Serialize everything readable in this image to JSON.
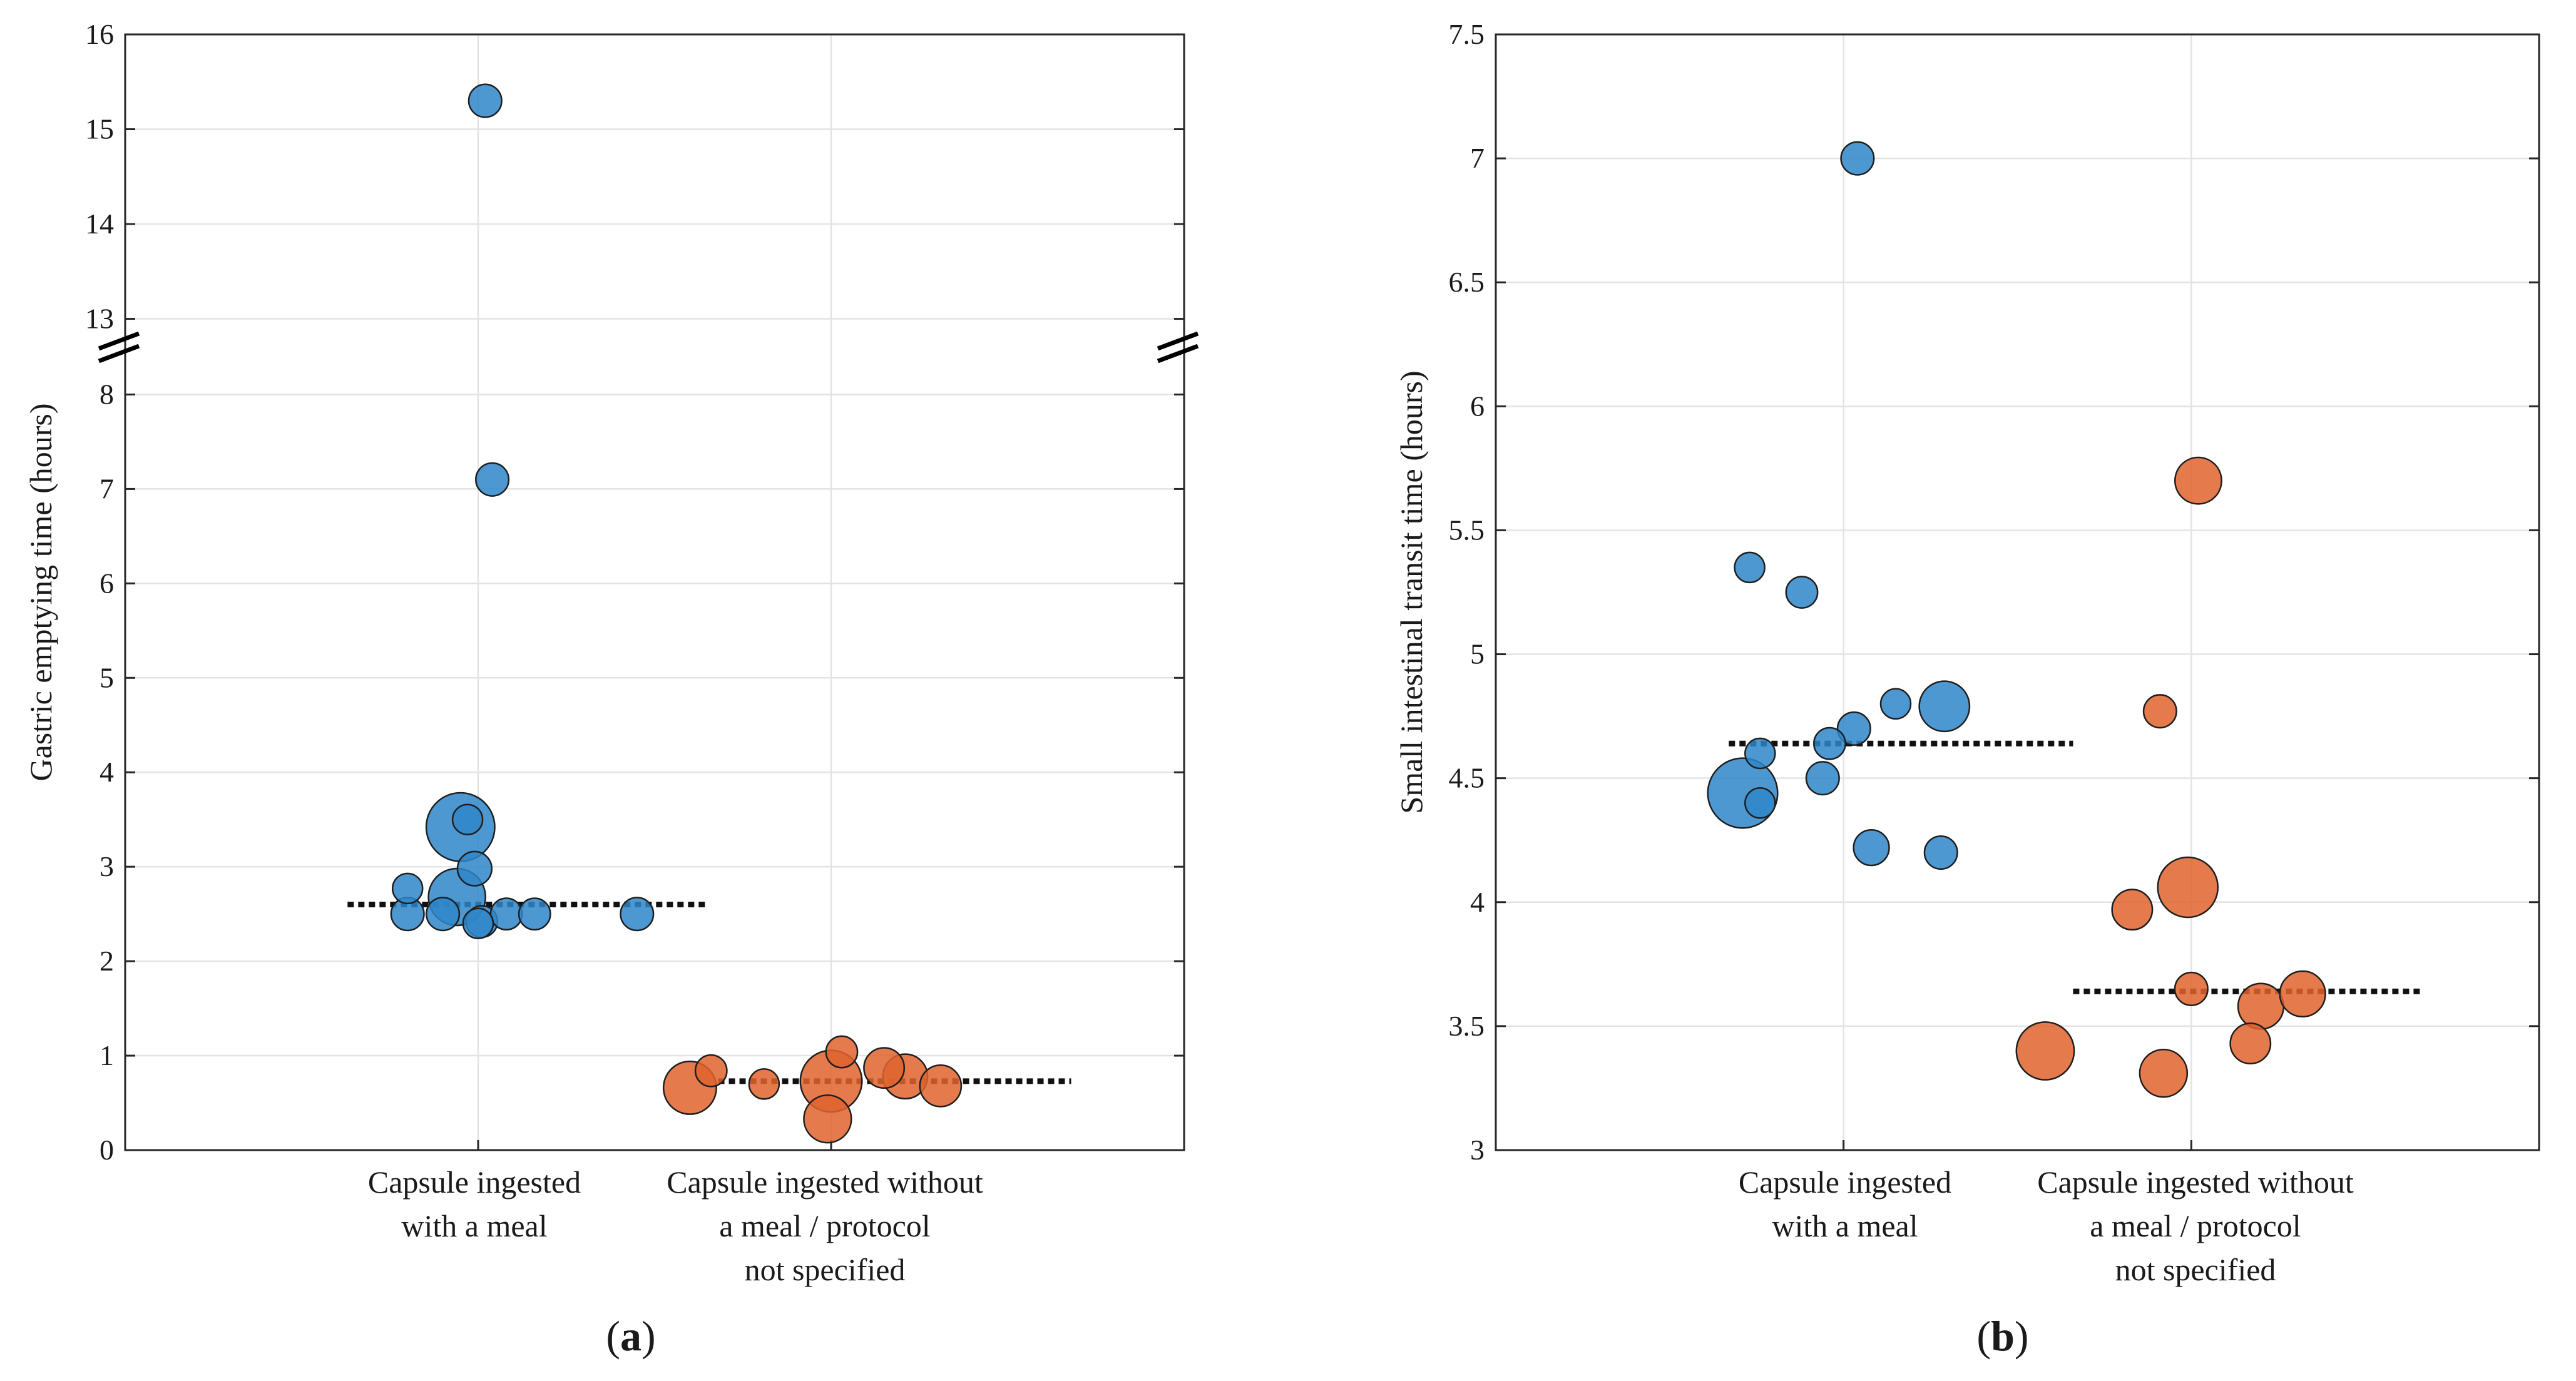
{
  "colors": {
    "with_meal": "#2f86c9",
    "without_meal": "#e0642e",
    "median": "#111111"
  },
  "chart_data": [
    {
      "type": "scatter",
      "panel_label_open": "(",
      "panel_label_letter": "a",
      "panel_label_close": ")",
      "title": "",
      "ylabel": "Gastric emptying time (hours)",
      "xlabel": "",
      "categories": [
        "Capsule ingested\nwith a meal",
        "Capsule ingested without\na meal / protocol\nnot specified"
      ],
      "y_axis_break": {
        "from": 8.5,
        "to": 12.7
      },
      "ylim": [
        0,
        16
      ],
      "yticks": [
        "0",
        "1",
        "2",
        "3",
        "4",
        "5",
        "6",
        "7",
        "8",
        "13",
        "14",
        "15",
        "16"
      ],
      "grid": true,
      "series": [
        {
          "name": "Capsule ingested with a meal",
          "color": "#2f86c9",
          "median": 2.6,
          "points": [
            {
              "x": 0.8,
              "y": 2.77,
              "size": 1
            },
            {
              "x": 0.8,
              "y": 2.5,
              "size": 1.2
            },
            {
              "x": 0.9,
              "y": 2.5,
              "size": 1.2
            },
            {
              "x": 0.95,
              "y": 3.42,
              "size": 5.2
            },
            {
              "x": 0.94,
              "y": 2.68,
              "size": 3.6
            },
            {
              "x": 0.97,
              "y": 3.5,
              "size": 1
            },
            {
              "x": 0.99,
              "y": 2.98,
              "size": 1.3
            },
            {
              "x": 1.0,
              "y": 2.4,
              "size": 1
            },
            {
              "x": 1.01,
              "y": 2.42,
              "size": 1.1
            },
            {
              "x": 1.08,
              "y": 2.5,
              "size": 1.1
            },
            {
              "x": 1.16,
              "y": 2.5,
              "size": 1.1
            },
            {
              "x": 1.45,
              "y": 2.5,
              "size": 1.2
            },
            {
              "x": 1.04,
              "y": 7.1,
              "size": 1.2
            },
            {
              "x": 1.02,
              "y": 15.3,
              "size": 1.2
            }
          ]
        },
        {
          "name": "Capsule ingested without a meal / protocol not specified",
          "color": "#e0642e",
          "median": 0.73,
          "points": [
            {
              "x": 1.6,
              "y": 0.66,
              "size": 3.1
            },
            {
              "x": 1.66,
              "y": 0.84,
              "size": 1.1
            },
            {
              "x": 1.81,
              "y": 0.7,
              "size": 1
            },
            {
              "x": 2.0,
              "y": 0.73,
              "size": 4.2
            },
            {
              "x": 1.99,
              "y": 0.33,
              "size": 2.5
            },
            {
              "x": 2.03,
              "y": 1.04,
              "size": 1.1
            },
            {
              "x": 2.15,
              "y": 0.87,
              "size": 1.8
            },
            {
              "x": 2.21,
              "y": 0.78,
              "size": 2.2
            },
            {
              "x": 2.31,
              "y": 0.68,
              "size": 1.9
            }
          ]
        }
      ]
    },
    {
      "type": "scatter",
      "panel_label_open": "(",
      "panel_label_letter": "b",
      "panel_label_close": ")",
      "title": "",
      "ylabel": "Small intestinal transit time (hours)",
      "xlabel": "",
      "categories": [
        "Capsule ingested\nwith a meal",
        "Capsule ingested without\na meal / protocol\nnot specified"
      ],
      "ylim": [
        3,
        7.5
      ],
      "yticks": [
        "3",
        "3.5",
        "4",
        "4.5",
        "5",
        "5.5",
        "6",
        "6.5",
        "7",
        "7.5"
      ],
      "grid": true,
      "series": [
        {
          "name": "Capsule ingested with a meal",
          "color": "#2f86c9",
          "median": 4.64,
          "points": [
            {
              "x": 0.71,
              "y": 4.44,
              "size": 5.4
            },
            {
              "x": 0.73,
              "y": 5.35,
              "size": 1
            },
            {
              "x": 0.76,
              "y": 4.6,
              "size": 1
            },
            {
              "x": 0.76,
              "y": 4.4,
              "size": 1
            },
            {
              "x": 0.88,
              "y": 5.25,
              "size": 1.1
            },
            {
              "x": 0.94,
              "y": 4.5,
              "size": 1.2
            },
            {
              "x": 0.96,
              "y": 4.64,
              "size": 1.1
            },
            {
              "x": 1.03,
              "y": 4.7,
              "size": 1.2
            },
            {
              "x": 1.04,
              "y": 7.0,
              "size": 1.2
            },
            {
              "x": 1.08,
              "y": 4.22,
              "size": 1.4
            },
            {
              "x": 1.15,
              "y": 4.8,
              "size": 1
            },
            {
              "x": 1.28,
              "y": 4.2,
              "size": 1.2
            },
            {
              "x": 1.29,
              "y": 4.79,
              "size": 2.8
            }
          ]
        },
        {
          "name": "Capsule ingested without a meal / protocol not specified",
          "color": "#e0642e",
          "median": 3.64,
          "points": [
            {
              "x": 1.58,
              "y": 3.4,
              "size": 3.7
            },
            {
              "x": 1.83,
              "y": 3.97,
              "size": 1.8
            },
            {
              "x": 1.91,
              "y": 4.77,
              "size": 1.2
            },
            {
              "x": 1.92,
              "y": 3.31,
              "size": 2.5
            },
            {
              "x": 1.99,
              "y": 4.06,
              "size": 4.0
            },
            {
              "x": 2.0,
              "y": 3.65,
              "size": 1.2
            },
            {
              "x": 2.02,
              "y": 5.7,
              "size": 2.4
            },
            {
              "x": 2.17,
              "y": 3.43,
              "size": 1.8
            },
            {
              "x": 2.2,
              "y": 3.58,
              "size": 2.3
            },
            {
              "x": 2.32,
              "y": 3.63,
              "size": 2.3
            }
          ]
        }
      ]
    }
  ]
}
